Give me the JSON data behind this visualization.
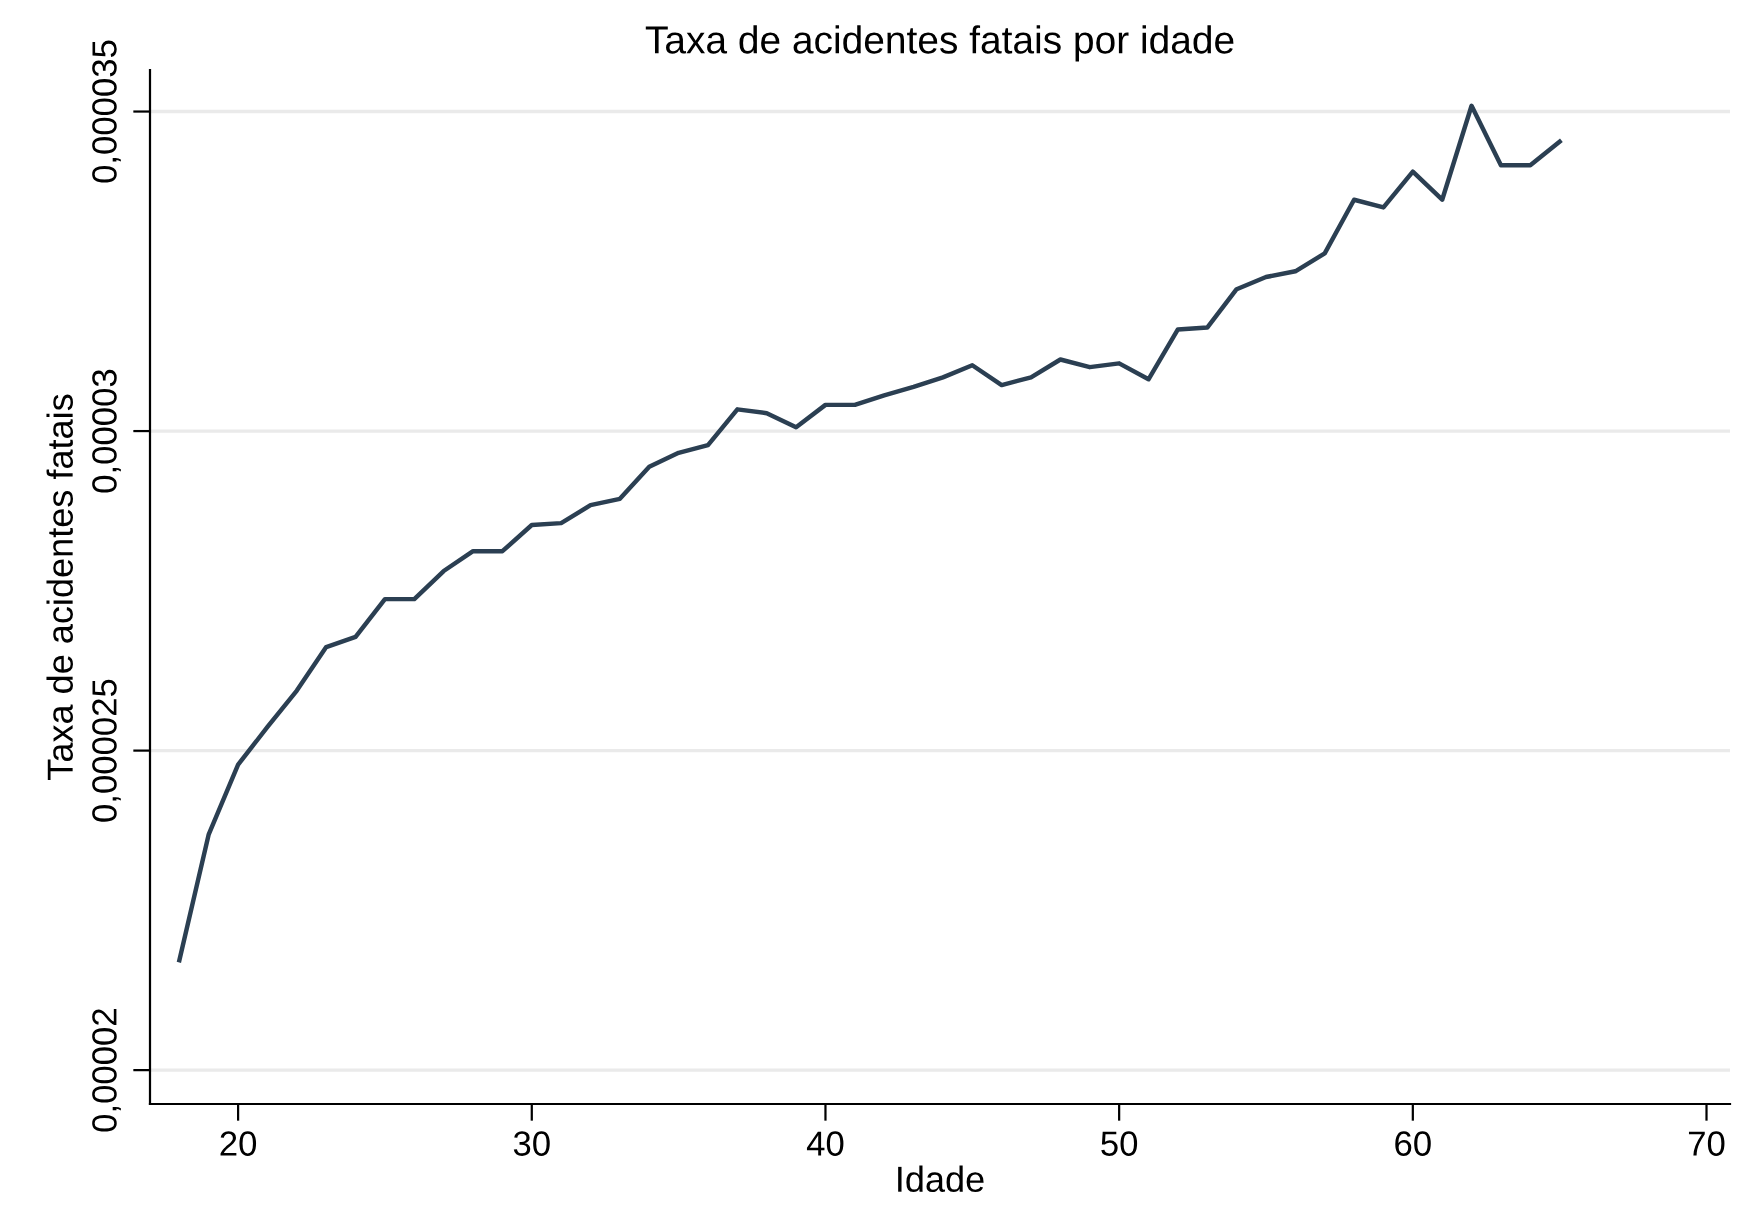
{
  "chart_data": {
    "type": "line",
    "title": "Taxa de acidentes fatais por idade",
    "xlabel": "Idade",
    "ylabel": "Taxa de acidentes fatais",
    "x": [
      18,
      19,
      20,
      21,
      22,
      23,
      24,
      25,
      26,
      27,
      28,
      29,
      30,
      31,
      32,
      33,
      34,
      35,
      36,
      37,
      38,
      39,
      40,
      41,
      42,
      43,
      44,
      45,
      46,
      47,
      48,
      49,
      50,
      51,
      52,
      53,
      54,
      55,
      56,
      57,
      58,
      59,
      60,
      61,
      62,
      63,
      64,
      65
    ],
    "series": [
      {
        "color": "#2b3f52",
        "values": [
          2.172e-05,
          2.369e-05,
          2.478e-05,
          2.537e-05,
          2.594e-05,
          2.662e-05,
          2.678e-05,
          2.737e-05,
          2.737e-05,
          2.781e-05,
          2.812e-05,
          2.812e-05,
          2.853e-05,
          2.856e-05,
          2.884e-05,
          2.894e-05,
          2.944e-05,
          2.966e-05,
          2.978e-05,
          3.034e-05,
          3.028e-05,
          3.006e-05,
          3.041e-05,
          3.041e-05,
          3.056e-05,
          3.069e-05,
          3.084e-05,
          3.103e-05,
          3.072e-05,
          3.084e-05,
          3.112e-05,
          3.1e-05,
          3.106e-05,
          3.081e-05,
          3.159e-05,
          3.162e-05,
          3.222e-05,
          3.241e-05,
          3.25e-05,
          3.278e-05,
          3.362e-05,
          3.35e-05,
          3.406e-05,
          3.362e-05,
          3.509e-05,
          3.416e-05,
          3.416e-05,
          3.453e-05
        ]
      }
    ],
    "xlim": [
      17,
      70.8
    ],
    "xticks": [
      20,
      30,
      40,
      50,
      60,
      70
    ],
    "ylim": [
      1.947e-05,
      3.565e-05
    ],
    "yticks": [
      {
        "value": 2e-05,
        "label": "0,00002"
      },
      {
        "value": 2.5e-05,
        "label": "0,000025"
      },
      {
        "value": 3e-05,
        "label": "0,00003"
      },
      {
        "value": 3.5e-05,
        "label": "0,000035"
      }
    ],
    "grid": "y",
    "marker": "none",
    "line_style": "solid",
    "legend": false
  }
}
